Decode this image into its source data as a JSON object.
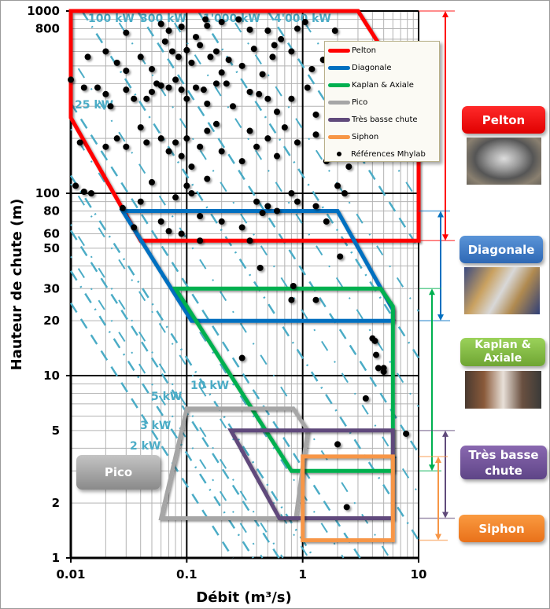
{
  "chart_data": {
    "type": "scatter",
    "title": "",
    "xlabel": "Débit  (m³/s)",
    "ylabel": "Hauteur de chute (m)",
    "xscale": "log",
    "yscale": "log",
    "xlim": [
      0.01,
      10
    ],
    "ylim": [
      1,
      1000
    ],
    "grid": true,
    "legend_placement": "top-right",
    "x_ticks": [
      "0.01",
      "0.1",
      "1",
      "10"
    ],
    "y_ticks": [
      {
        "value": 1000,
        "label": "1000"
      },
      {
        "value": 800,
        "label": "800"
      },
      {
        "value": 100,
        "label": "100"
      },
      {
        "value": 80,
        "label": "80"
      },
      {
        "value": 60,
        "label": "60"
      },
      {
        "value": 50,
        "label": "50"
      },
      {
        "value": 30,
        "label": "30"
      },
      {
        "value": 20,
        "label": "20"
      },
      {
        "value": 10,
        "label": "10"
      },
      {
        "value": 5,
        "label": "5"
      },
      {
        "value": 2,
        "label": "2"
      },
      {
        "value": 1,
        "label": "1"
      }
    ],
    "iso_power_color": "#4bacc6",
    "iso_power_lines": [
      {
        "kw": 2,
        "label": "2 kW"
      },
      {
        "kw": 3,
        "label": "3 kW"
      },
      {
        "kw": 5,
        "label": "5 kW"
      },
      {
        "kw": 10,
        "label": "10 kW"
      },
      {
        "kw": 25,
        "label": "25 kW"
      },
      {
        "kw": 100,
        "label": "100 kW"
      },
      {
        "kw": 300,
        "label": "300 kW"
      },
      {
        "kw": 1000,
        "label": "1'000 kW"
      },
      {
        "kw": 4000,
        "label": "4'000 kW"
      }
    ],
    "domains": [
      {
        "name": "Pelton",
        "color": "#ff0000",
        "range_m": [
          55,
          1000
        ],
        "polygon": [
          [
            0.01,
            1000
          ],
          [
            3,
            1000
          ],
          [
            10,
            300
          ],
          [
            10,
            55
          ],
          [
            0.04,
            55
          ],
          [
            0.01,
            260
          ]
        ]
      },
      {
        "name": "Diagonale",
        "color": "#0070c0",
        "range_m": [
          20,
          80
        ],
        "polygon": [
          [
            0.028,
            80
          ],
          [
            2,
            80
          ],
          [
            6,
            23
          ],
          [
            6,
            20
          ],
          [
            0.11,
            20
          ]
        ]
      },
      {
        "name": "Kaplan & Axiale",
        "color": "#00b050",
        "range_m": [
          3,
          30
        ],
        "polygon": [
          [
            0.08,
            30
          ],
          [
            4.7,
            30
          ],
          [
            6,
            24
          ],
          [
            6,
            3
          ],
          [
            0.8,
            3
          ]
        ]
      },
      {
        "name": "Pico",
        "color": "#a6a6a6",
        "range_m": [
          1.65,
          6.6
        ],
        "polygon": [
          [
            0.1,
            6.6
          ],
          [
            0.83,
            6.6
          ],
          [
            1.1,
            5
          ],
          [
            0.87,
            1.65
          ],
          [
            0.06,
            1.65
          ]
        ]
      },
      {
        "name": "Très basse chute",
        "color": "#604a7b",
        "range_m": [
          1.65,
          5
        ],
        "polygon": [
          [
            0.24,
            5
          ],
          [
            6,
            5
          ],
          [
            6,
            1.65
          ],
          [
            0.63,
            1.65
          ]
        ]
      },
      {
        "name": "Siphon",
        "color": "#f79646",
        "range_m": [
          1.25,
          3.6
        ],
        "polygon": [
          [
            1,
            3.6
          ],
          [
            6,
            3.6
          ],
          [
            6,
            1.25
          ],
          [
            1,
            1.25
          ]
        ]
      }
    ],
    "series": [
      {
        "name": "Références Mhylab",
        "color": "#000000",
        "points": [
          [
            0.06,
            850
          ],
          [
            0.065,
            680
          ],
          [
            0.07,
            780
          ],
          [
            0.09,
            820
          ],
          [
            0.03,
            760
          ],
          [
            0.145,
            900
          ],
          [
            0.15,
            830
          ],
          [
            0.12,
            720
          ],
          [
            0.2,
            870
          ],
          [
            0.28,
            900
          ],
          [
            0.35,
            790
          ],
          [
            0.5,
            780
          ],
          [
            0.57,
            650
          ],
          [
            0.9,
            800
          ],
          [
            1.05,
            870
          ],
          [
            1.9,
            780
          ],
          [
            0.13,
            650
          ],
          [
            0.1,
            610
          ],
          [
            0.014,
            560
          ],
          [
            0.02,
            600
          ],
          [
            0.025,
            520
          ],
          [
            0.04,
            560
          ],
          [
            0.05,
            480
          ],
          [
            0.03,
            470
          ],
          [
            0.075,
            600
          ],
          [
            0.085,
            560
          ],
          [
            0.11,
            520
          ],
          [
            0.16,
            560
          ],
          [
            0.18,
            600
          ],
          [
            0.2,
            460
          ],
          [
            0.23,
            540
          ],
          [
            0.3,
            500
          ],
          [
            0.38,
            620
          ],
          [
            0.45,
            450
          ],
          [
            0.55,
            560
          ],
          [
            0.65,
            700
          ],
          [
            0.8,
            600
          ],
          [
            1.2,
            480
          ],
          [
            1.5,
            540
          ],
          [
            2.2,
            560
          ],
          [
            2.6,
            620
          ],
          [
            3,
            430
          ],
          [
            3.3,
            470
          ],
          [
            0.01,
            420
          ],
          [
            0.013,
            380
          ],
          [
            0.017,
            380
          ],
          [
            0.02,
            350
          ],
          [
            0.022,
            300
          ],
          [
            0.03,
            370
          ],
          [
            0.035,
            330
          ],
          [
            0.045,
            330
          ],
          [
            0.05,
            360
          ],
          [
            0.055,
            400
          ],
          [
            0.06,
            390
          ],
          [
            0.07,
            380
          ],
          [
            0.08,
            420
          ],
          [
            0.09,
            370
          ],
          [
            0.1,
            330
          ],
          [
            0.12,
            380
          ],
          [
            0.14,
            370
          ],
          [
            0.15,
            310
          ],
          [
            0.18,
            400
          ],
          [
            0.22,
            400
          ],
          [
            0.25,
            300
          ],
          [
            0.35,
            360
          ],
          [
            0.42,
            350
          ],
          [
            0.5,
            330
          ],
          [
            0.6,
            280
          ],
          [
            0.8,
            330
          ],
          [
            1.1,
            380
          ],
          [
            1.3,
            270
          ],
          [
            2.6,
            270
          ],
          [
            3.5,
            300
          ],
          [
            4.2,
            320
          ],
          [
            0.012,
            190
          ],
          [
            0.02,
            180
          ],
          [
            0.025,
            200
          ],
          [
            0.03,
            180
          ],
          [
            0.04,
            230
          ],
          [
            0.045,
            190
          ],
          [
            0.06,
            200
          ],
          [
            0.07,
            170
          ],
          [
            0.08,
            190
          ],
          [
            0.09,
            160
          ],
          [
            0.1,
            200
          ],
          [
            0.11,
            140
          ],
          [
            0.13,
            180
          ],
          [
            0.15,
            220
          ],
          [
            0.18,
            240
          ],
          [
            0.2,
            170
          ],
          [
            0.3,
            150
          ],
          [
            0.35,
            220
          ],
          [
            0.4,
            180
          ],
          [
            0.5,
            200
          ],
          [
            0.6,
            160
          ],
          [
            0.7,
            230
          ],
          [
            0.9,
            190
          ],
          [
            1.3,
            210
          ],
          [
            1.6,
            150
          ],
          [
            2,
            180
          ],
          [
            2.5,
            140
          ],
          [
            3,
            200
          ],
          [
            0.011,
            110
          ],
          [
            0.013,
            102
          ],
          [
            0.015,
            100
          ],
          [
            0.028,
            83
          ],
          [
            0.035,
            65
          ],
          [
            0.04,
            90
          ],
          [
            0.05,
            115
          ],
          [
            0.06,
            70
          ],
          [
            0.07,
            62
          ],
          [
            0.08,
            95
          ],
          [
            0.09,
            60
          ],
          [
            0.1,
            110
          ],
          [
            0.11,
            100
          ],
          [
            0.13,
            75
          ],
          [
            0.15,
            120
          ],
          [
            0.2,
            70
          ],
          [
            0.3,
            65
          ],
          [
            0.4,
            90
          ],
          [
            0.45,
            78
          ],
          [
            0.5,
            85
          ],
          [
            0.6,
            80
          ],
          [
            0.8,
            100
          ],
          [
            0.9,
            90
          ],
          [
            1.3,
            85
          ],
          [
            1.6,
            70
          ],
          [
            2,
            110
          ],
          [
            2.3,
            100
          ],
          [
            0.13,
            55
          ],
          [
            0.35,
            55
          ],
          [
            0.43,
            39
          ],
          [
            2.1,
            45
          ],
          [
            0.83,
            31
          ],
          [
            0.8,
            26
          ],
          [
            1.3,
            26
          ],
          [
            0.3,
            12.5
          ],
          [
            4,
            16
          ],
          [
            4.2,
            15.5
          ],
          [
            4.3,
            13
          ],
          [
            4.5,
            11
          ],
          [
            5,
            11
          ],
          [
            5,
            10.5
          ],
          [
            3.5,
            7.5
          ],
          [
            2,
            4.2
          ],
          [
            7.8,
            4.8
          ],
          [
            2.4,
            1.9
          ]
        ]
      }
    ]
  },
  "legend": {
    "items": [
      {
        "label": "Pelton",
        "color": "#ff0000"
      },
      {
        "label": "Diagonale",
        "color": "#0070c0"
      },
      {
        "label": "Kaplan & Axiale",
        "color": "#00b050"
      },
      {
        "label": "Pico",
        "color": "#a6a6a6"
      },
      {
        "label": "Très basse chute",
        "color": "#604a7b"
      },
      {
        "label": "Siphon",
        "color": "#f79646"
      }
    ],
    "points_label": "Références Mhylab"
  },
  "side_labels": {
    "pelton": "Pelton",
    "diagonale": "Diagonale",
    "kaplan": "Kaplan & Axiale",
    "tbc": "Très basse chute",
    "siphon": "Siphon",
    "pico": "Pico"
  }
}
